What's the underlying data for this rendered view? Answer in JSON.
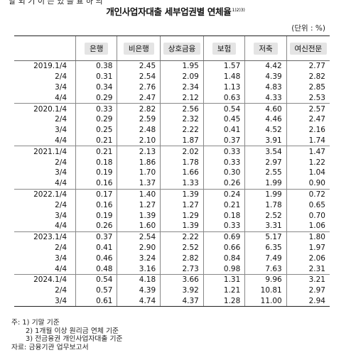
{
  "cut_top_text": "말 외 기 이 는 있 를 표 하 의",
  "title": "개인사업자대출 세부업권별 연체율",
  "title_superscript": "1)2)3)",
  "unit": "(단위 : %)",
  "columns": {
    "bank": "은행",
    "nonbank": "비은행",
    "savings_bank": "상호금융",
    "insurance": "보험",
    "savings": "저축",
    "specialized_credit": "여신전문"
  },
  "rows": [
    {
      "period": "2019.1/4",
      "v": [
        "0.38",
        "2.45",
        "1.95",
        "1.57",
        "4.42",
        "2.77"
      ]
    },
    {
      "period": "2/4",
      "v": [
        "0.31",
        "2.54",
        "2.09",
        "1.48",
        "4.39",
        "2.82"
      ]
    },
    {
      "period": "3/4",
      "v": [
        "0.34",
        "2.76",
        "2.34",
        "1.13",
        "4.83",
        "2.85"
      ]
    },
    {
      "period": "4/4",
      "v": [
        "0.29",
        "2.47",
        "2.12",
        "0.63",
        "4.33",
        "2.53"
      ]
    },
    {
      "period": "2020.1/4",
      "v": [
        "0.33",
        "2.82",
        "2.56",
        "0.54",
        "4.60",
        "2.57"
      ]
    },
    {
      "period": "2/4",
      "v": [
        "0.29",
        "2.59",
        "2.32",
        "0.45",
        "4.46",
        "2.47"
      ]
    },
    {
      "period": "3/4",
      "v": [
        "0.25",
        "2.48",
        "2.22",
        "0.41",
        "4.52",
        "2.16"
      ]
    },
    {
      "period": "4/4",
      "v": [
        "0.21",
        "2.10",
        "1.87",
        "0.37",
        "3.91",
        "1.74"
      ]
    },
    {
      "period": "2021.1/4",
      "v": [
        "0.21",
        "2.13",
        "2.02",
        "0.33",
        "3.54",
        "1.47"
      ]
    },
    {
      "period": "2/4",
      "v": [
        "0.18",
        "1.86",
        "1.78",
        "0.33",
        "2.97",
        "1.22"
      ]
    },
    {
      "period": "3/4",
      "v": [
        "0.19",
        "1.70",
        "1.66",
        "0.30",
        "2.55",
        "1.04"
      ]
    },
    {
      "period": "4/4",
      "v": [
        "0.16",
        "1.37",
        "1.33",
        "0.26",
        "1.99",
        "0.90"
      ]
    },
    {
      "period": "2022.1/4",
      "v": [
        "0.17",
        "1.40",
        "1.39",
        "0.24",
        "1.99",
        "0.72"
      ]
    },
    {
      "period": "2/4",
      "v": [
        "0.16",
        "1.27",
        "1.27",
        "0.21",
        "1.78",
        "0.65"
      ]
    },
    {
      "period": "3/4",
      "v": [
        "0.19",
        "1.39",
        "1.29",
        "0.18",
        "2.52",
        "0.70"
      ]
    },
    {
      "period": "4/4",
      "v": [
        "0.26",
        "1.60",
        "1.39",
        "0.33",
        "3.31",
        "1.06"
      ]
    },
    {
      "period": "2023.1/4",
      "v": [
        "0.37",
        "2.54",
        "2.22",
        "0.69",
        "5.17",
        "1.80"
      ]
    },
    {
      "period": "2/4",
      "v": [
        "0.41",
        "2.90",
        "2.52",
        "0.66",
        "6.35",
        "1.97"
      ]
    },
    {
      "period": "3/4",
      "v": [
        "0.46",
        "3.24",
        "2.82",
        "0.84",
        "7.49",
        "2.06"
      ]
    },
    {
      "period": "4/4",
      "v": [
        "0.48",
        "3.16",
        "2.73",
        "0.98",
        "7.63",
        "2.31"
      ]
    },
    {
      "period": "2024.1/4",
      "v": [
        "0.54",
        "4.18",
        "3.66",
        "1.31",
        "9.96",
        "3.21"
      ]
    },
    {
      "period": "2/4",
      "v": [
        "0.57",
        "4.39",
        "3.92",
        "1.21",
        "10.81",
        "2.97"
      ]
    },
    {
      "period": "3/4",
      "v": [
        "0.61",
        "4.74",
        "4.37",
        "1.28",
        "11.00",
        "2.94"
      ]
    }
  ],
  "notes": [
    "주: 1) 기말 기준",
    "2) 1개월 이상 원리금 연체 기준",
    "3) 전금융권 개인사업자대출 기준",
    "자료: 금융기관 업무보고서"
  ]
}
